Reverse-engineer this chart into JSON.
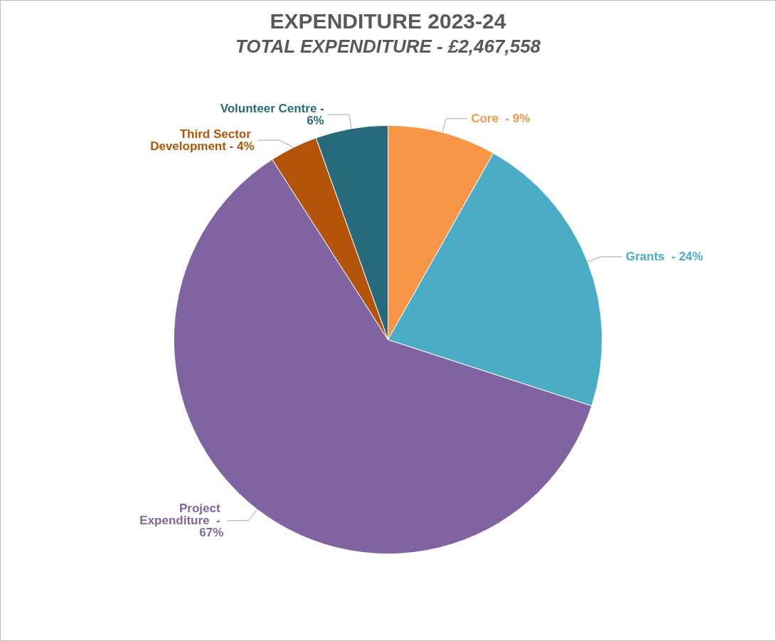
{
  "chart_data": {
    "type": "pie",
    "title": "EXPENDITURE 2023-24",
    "subtitle": "TOTAL EXPENDITURE - £2,467,558",
    "categories": [
      "Core  -",
      "Grants  -",
      "Project Expenditure  -",
      "Third Sector Development -",
      "Volunteer Centre -"
    ],
    "values": [
      9,
      24,
      67,
      4,
      6
    ],
    "colors": [
      "#f79646",
      "#4bacc6",
      "#8064a2",
      "#b3540a",
      "#276a7c"
    ],
    "value_labels": [
      "9%",
      "24%",
      "67%",
      "4%",
      "6%"
    ],
    "legend": false
  }
}
